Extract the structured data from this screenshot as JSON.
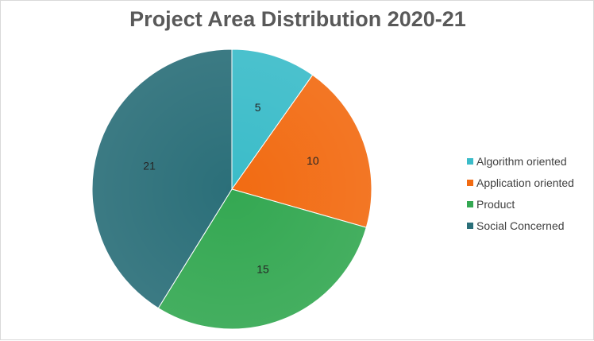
{
  "chart_data": {
    "type": "pie",
    "title": "Project Area Distribution 2020-21",
    "categories": [
      "Algorithm oriented",
      "Application oriented",
      "Product",
      "Social Concerned"
    ],
    "values": [
      5,
      10,
      15,
      21
    ],
    "colors": [
      "#3bbcc9",
      "#f26b12",
      "#34a852",
      "#2b6f79"
    ],
    "data_labels": [
      "5",
      "10",
      "15",
      "21"
    ],
    "legend_position": "right"
  }
}
